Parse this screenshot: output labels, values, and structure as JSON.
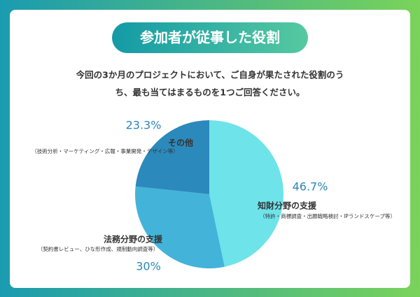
{
  "chart_data": {
    "type": "pie",
    "title": "参加者が従事した役割",
    "subtitle_lines": [
      "今回の3か月のプロジェクトにおいて、ご自身が果たされた役割のう",
      "ち、最も当てはまるものを1つご回答ください。"
    ],
    "categories": [
      "知財分野の支援",
      "法務分野の支援",
      "その他"
    ],
    "notes": [
      "（特許・商標調査・出願戦略検討・IPランドスケープ等）",
      "（契約書レビュー、ひな形作成、規制動向調査等）",
      "（技術分析・マーケティング・広報・事業開発・デザイン等）"
    ],
    "values": [
      46.7,
      30,
      23.3
    ],
    "value_labels": [
      "46.7%",
      "30%",
      "23.3%"
    ],
    "colors": [
      "#6ee3ea",
      "#44b3d9",
      "#2c89bb"
    ]
  }
}
